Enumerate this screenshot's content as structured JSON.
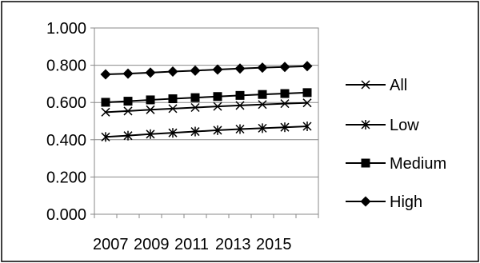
{
  "chart_data": {
    "type": "line",
    "x": [
      2007,
      2008,
      2009,
      2010,
      2011,
      2012,
      2013,
      2014,
      2015,
      2016
    ],
    "x_tick_labels": [
      "2007",
      "2009",
      "2011",
      "2013",
      "2015"
    ],
    "y_tick_labels": [
      "1.000",
      "0.800",
      "0.600",
      "0.400",
      "0.200",
      "0.000"
    ],
    "ylim": [
      0,
      1
    ],
    "y_ticks": [
      1.0,
      0.8,
      0.6,
      0.4,
      0.2,
      0.0
    ],
    "grid": "horizontal",
    "legend_position": "right",
    "series": [
      {
        "name": "All",
        "marker": "x",
        "values": [
          0.548,
          0.554,
          0.561,
          0.567,
          0.573,
          0.579,
          0.584,
          0.589,
          0.594,
          0.598
        ]
      },
      {
        "name": "Low",
        "marker": "asterisk",
        "values": [
          0.415,
          0.422,
          0.43,
          0.437,
          0.444,
          0.451,
          0.457,
          0.462,
          0.467,
          0.472
        ]
      },
      {
        "name": "Medium",
        "marker": "square",
        "values": [
          0.601,
          0.607,
          0.614,
          0.62,
          0.626,
          0.632,
          0.638,
          0.643,
          0.648,
          0.653
        ]
      },
      {
        "name": "High",
        "marker": "diamond",
        "values": [
          0.751,
          0.755,
          0.76,
          0.766,
          0.771,
          0.777,
          0.782,
          0.787,
          0.791,
          0.795
        ]
      }
    ],
    "colors": {
      "line": "#000000",
      "grid": "#888888",
      "border": "#000000"
    }
  }
}
